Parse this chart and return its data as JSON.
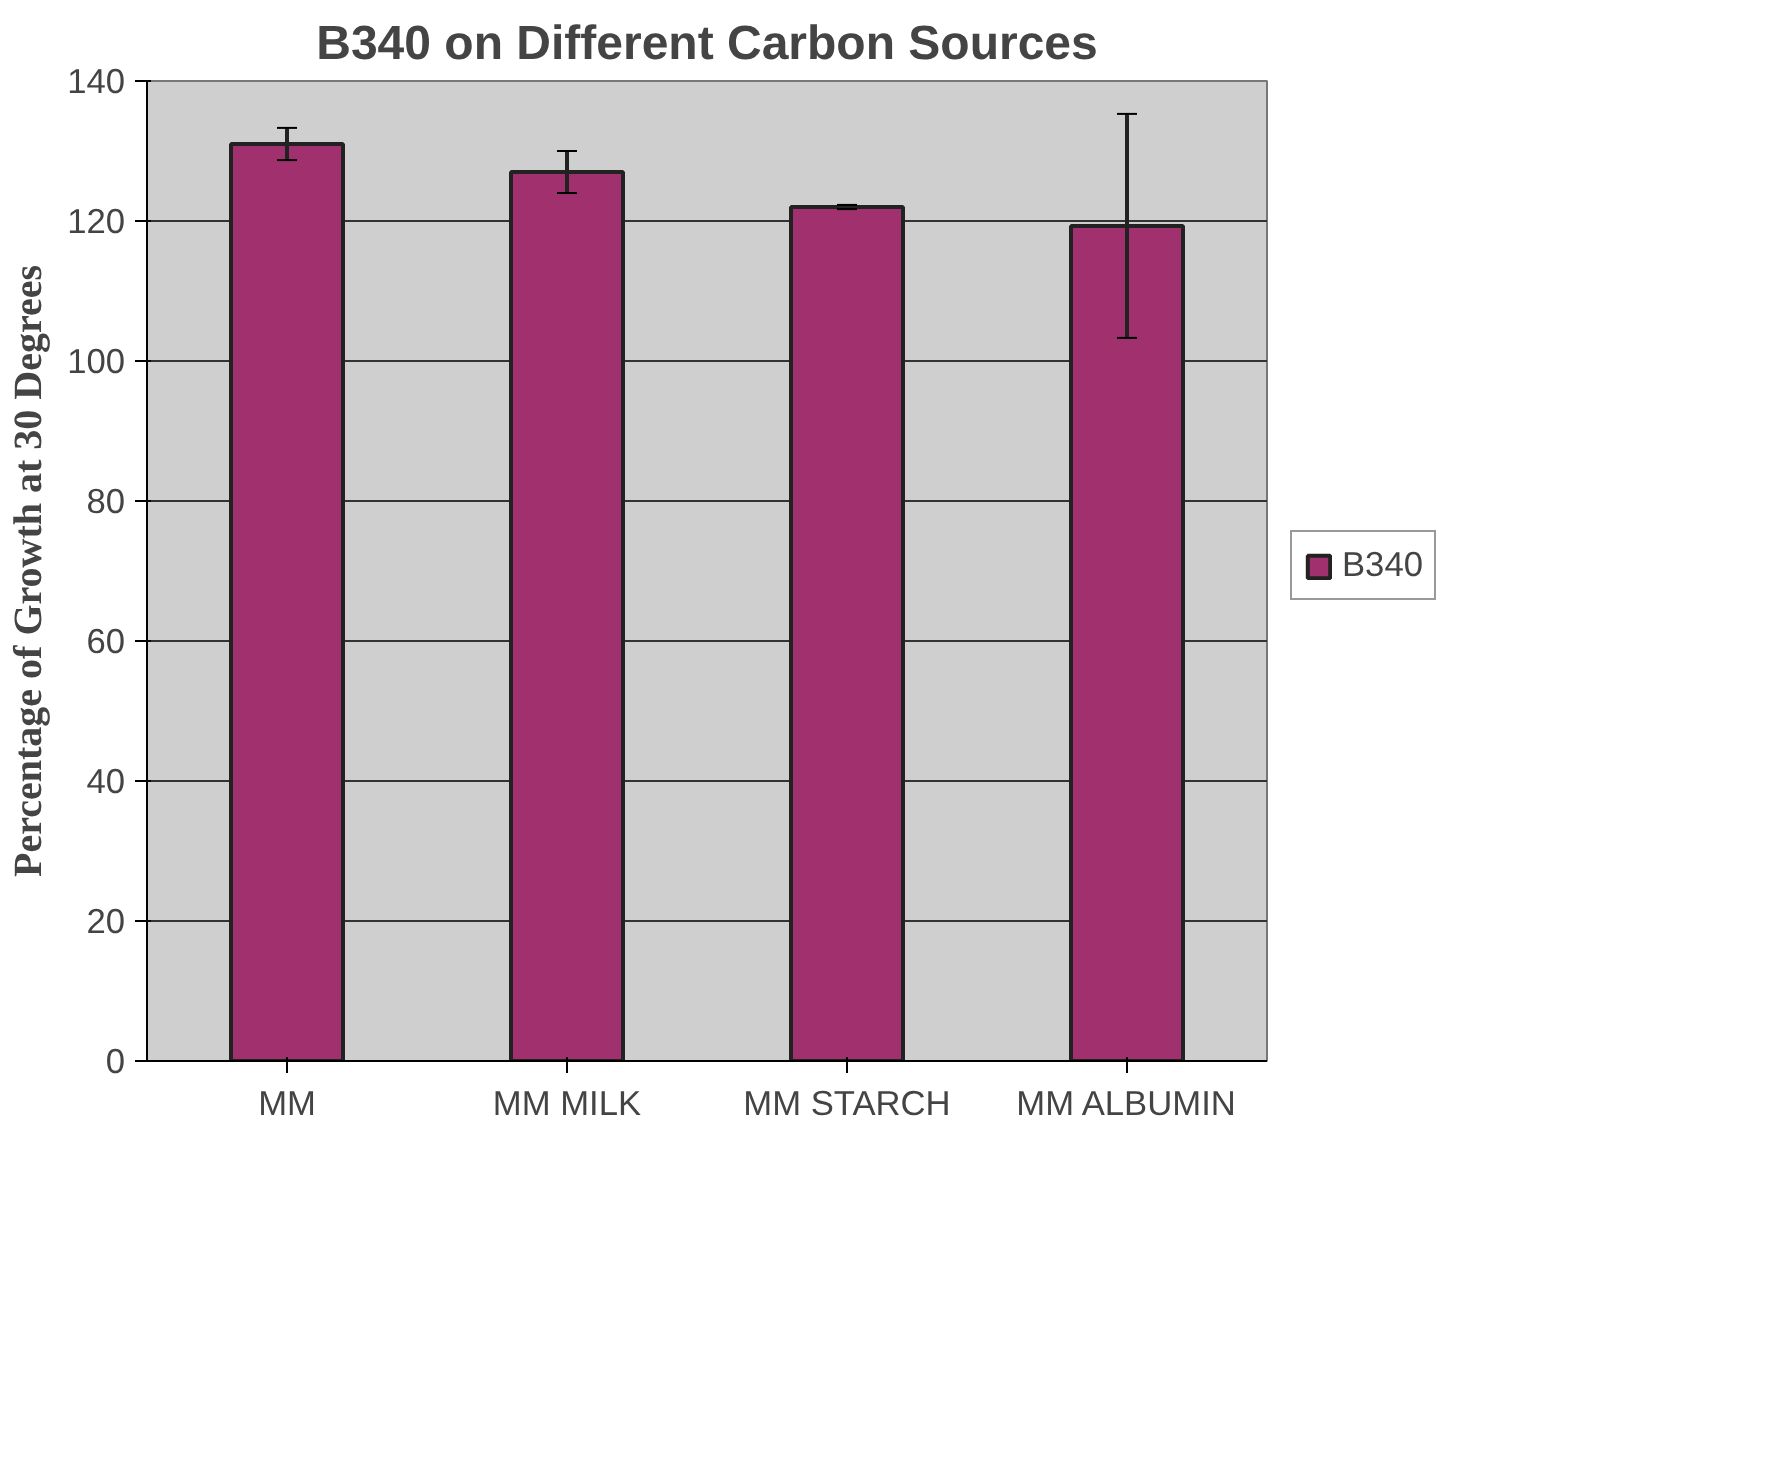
{
  "chart_data": {
    "type": "bar",
    "title": "B340 on Different Carbon Sources",
    "ylabel": "Percentage of Growth at 30 Degrees",
    "categories": [
      "MM",
      "MM MILK",
      "MM STARCH",
      "MM ALBUMIN"
    ],
    "series": [
      {
        "name": "B340",
        "color": "#a0306e",
        "values": [
          131,
          127,
          122,
          119.3
        ],
        "errors": [
          2.3,
          3,
          0.3,
          16
        ]
      }
    ],
    "ylim": [
      0,
      140
    ],
    "yticks": [
      0,
      20,
      40,
      60,
      80,
      100,
      120,
      140
    ],
    "grid": "y",
    "legend": "right"
  }
}
